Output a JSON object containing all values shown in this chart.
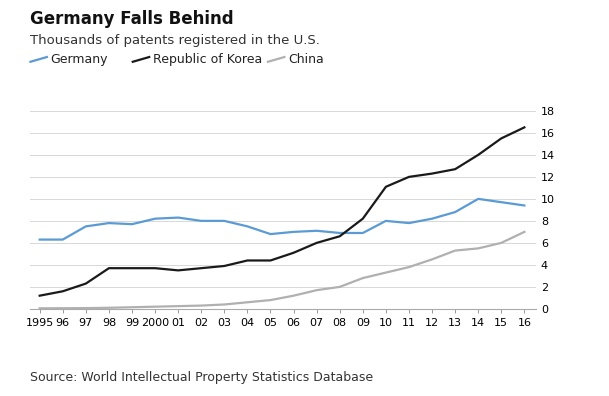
{
  "title": "Germany Falls Behind",
  "subtitle": "Thousands of patents registered in the U.S.",
  "source": "Source: World Intellectual Property Statistics Database",
  "years": [
    1995,
    1996,
    1997,
    1998,
    1999,
    2000,
    2001,
    2002,
    2003,
    2004,
    2005,
    2006,
    2007,
    2008,
    2009,
    2010,
    2011,
    2012,
    2013,
    2014,
    2015,
    2016
  ],
  "germany": [
    6.3,
    6.3,
    7.5,
    7.8,
    7.7,
    8.2,
    8.3,
    8.0,
    8.0,
    7.5,
    6.8,
    7.0,
    7.1,
    6.9,
    6.9,
    8.0,
    7.8,
    8.2,
    8.8,
    10.0,
    9.7,
    9.4
  ],
  "korea": [
    1.2,
    1.6,
    2.3,
    3.7,
    3.7,
    3.7,
    3.5,
    3.7,
    3.9,
    4.4,
    4.4,
    5.1,
    6.0,
    6.6,
    8.2,
    11.1,
    12.0,
    12.3,
    12.7,
    14.0,
    15.5,
    16.5
  ],
  "china": [
    0.05,
    0.06,
    0.07,
    0.1,
    0.15,
    0.2,
    0.25,
    0.3,
    0.4,
    0.6,
    0.8,
    1.2,
    1.7,
    2.0,
    2.8,
    3.3,
    3.8,
    4.5,
    5.3,
    5.5,
    6.0,
    7.0
  ],
  "germany_color": "#5b9bd5",
  "korea_color": "#1a1a1a",
  "china_color": "#b0b0b0",
  "ylim": [
    0,
    18
  ],
  "yticks": [
    0,
    2,
    4,
    6,
    8,
    10,
    12,
    14,
    16,
    18
  ],
  "xtick_labels": [
    "1995",
    "96",
    "97",
    "98",
    "99",
    "2000",
    "01",
    "02",
    "03",
    "04",
    "05",
    "06",
    "07",
    "08",
    "09",
    "10",
    "11",
    "12",
    "13",
    "14",
    "15",
    "16"
  ],
  "bg_color": "#ffffff",
  "grid_color": "#d8d8d8",
  "title_fontsize": 12,
  "subtitle_fontsize": 9.5,
  "source_fontsize": 9,
  "legend_fontsize": 9,
  "tick_fontsize": 8
}
